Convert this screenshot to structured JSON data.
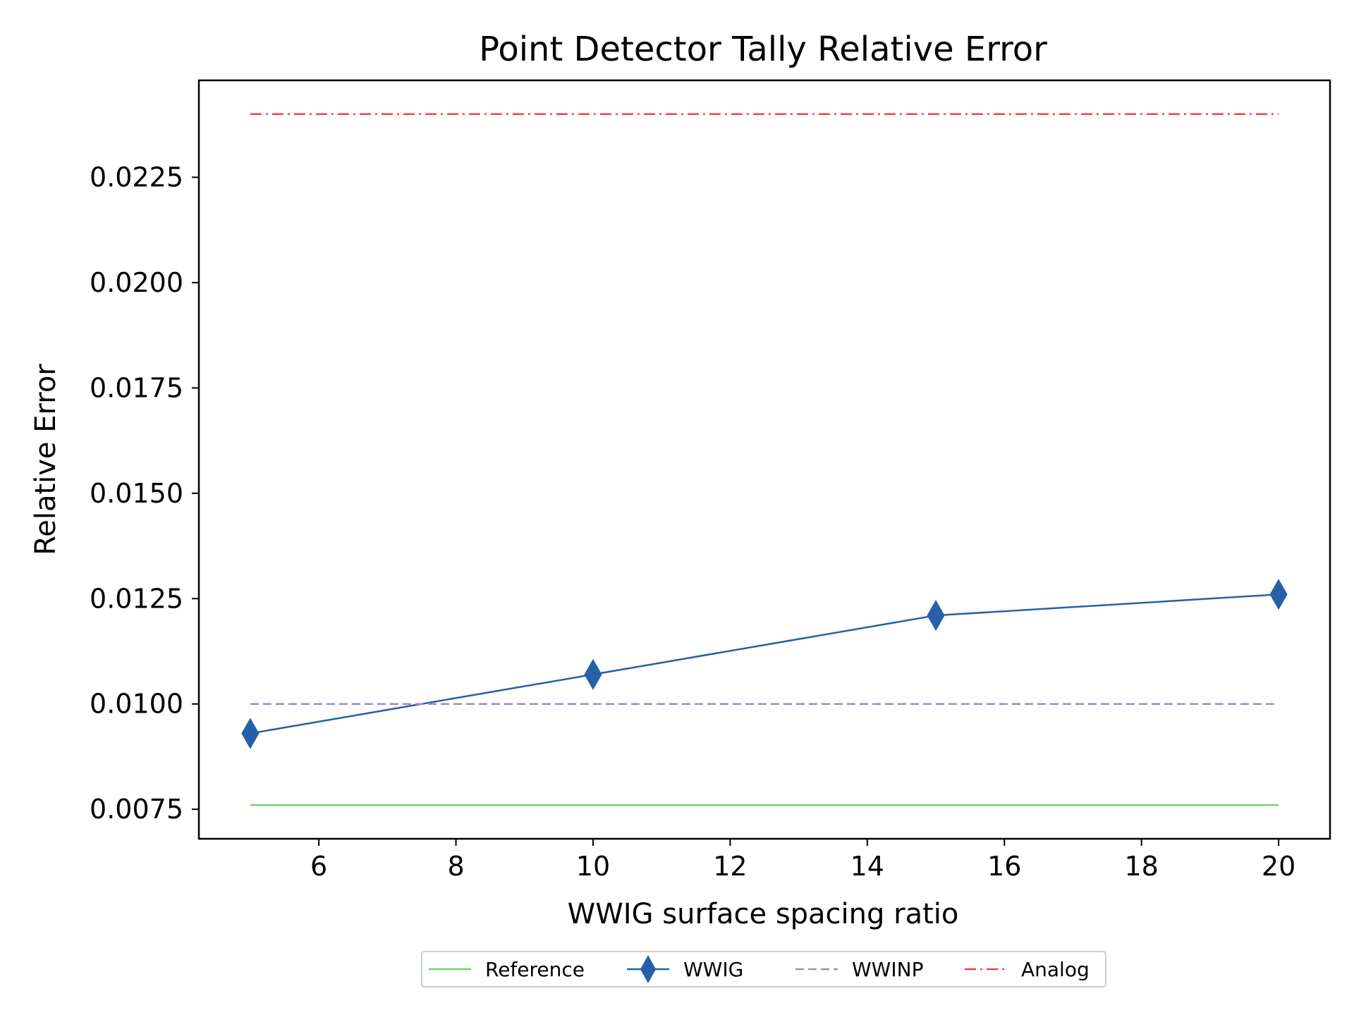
{
  "chart_data": {
    "type": "line",
    "title": "Point Detector Tally Relative Error",
    "xlabel": "WWIG surface spacing ratio",
    "ylabel": "Relative Error",
    "xlim": [
      4.25,
      20.75
    ],
    "ylim": [
      0.0068,
      0.0248
    ],
    "xticks": [
      6,
      8,
      10,
      12,
      14,
      16,
      18,
      20
    ],
    "yticks": [
      0.0075,
      0.01,
      0.0125,
      0.015,
      0.0175,
      0.02,
      0.0225
    ],
    "ytick_labels": [
      "0.0075",
      "0.0100",
      "0.0125",
      "0.0150",
      "0.0175",
      "0.0200",
      "0.0225"
    ],
    "grid": false,
    "legend_position": "bottom-center",
    "series": [
      {
        "name": "Reference",
        "x": [
          5,
          20
        ],
        "values": [
          0.0076,
          0.0076
        ],
        "color": "#6ad46a",
        "style": "solid",
        "marker": "none"
      },
      {
        "name": "WWIG",
        "x": [
          5,
          10,
          15,
          20
        ],
        "values": [
          0.0093,
          0.0107,
          0.0121,
          0.0126
        ],
        "color": "#2560a8",
        "style": "solid",
        "marker": "thin-diamond"
      },
      {
        "name": "WWINP",
        "x": [
          5,
          20
        ],
        "values": [
          0.01,
          0.01
        ],
        "color": "#a08cb8",
        "style": "dashed",
        "marker": "none"
      },
      {
        "name": "Analog",
        "x": [
          5,
          20
        ],
        "values": [
          0.024,
          0.024
        ],
        "color": "#f04040",
        "style": "dashdot",
        "marker": "none"
      }
    ]
  }
}
